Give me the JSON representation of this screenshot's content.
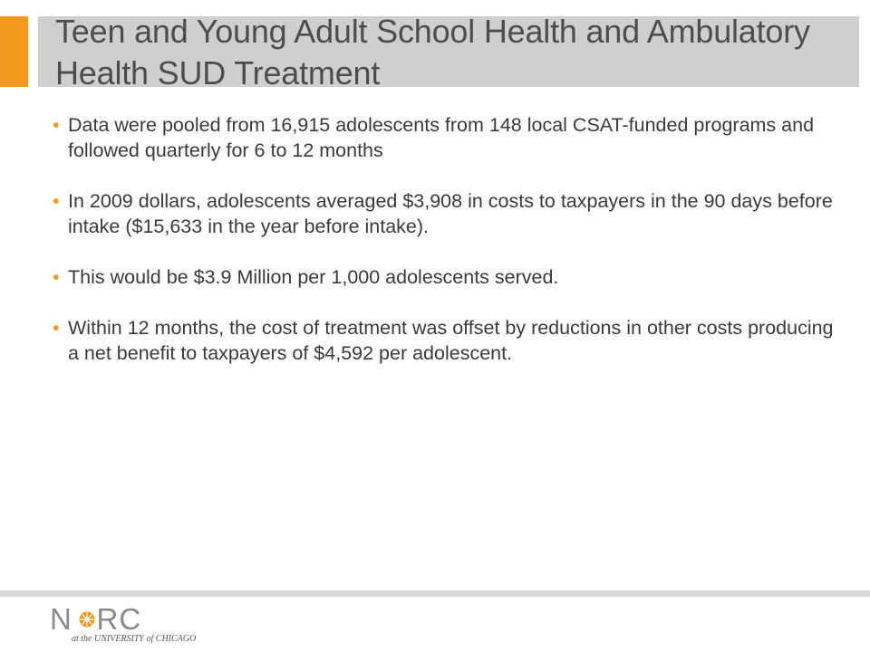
{
  "colors": {
    "accent": "#f39a1e",
    "title_band": "#cfcfcf",
    "title_text": "#4d4d4d",
    "body_text": "#3a3a3a",
    "footer_line": "#d9d9d9"
  },
  "slide": {
    "title": "Teen and Young Adult School Health and Ambulatory Health SUD Treatment",
    "bullets": [
      "Data were pooled from 16,915 adolescents from 148 local CSAT-funded programs and followed quarterly for 6 to 12 months",
      "In 2009 dollars, adolescents averaged $3,908 in costs to taxpayers in the 90 days before intake ($15,633 in the year before intake).",
      "This would be $3.9 Million per 1,000 adolescents served.",
      "Within 12 months, the cost of treatment was offset by reductions in other costs producing a net benefit to taxpayers of $4,592 per adolescent."
    ],
    "bullet_symbol": "•"
  },
  "logo": {
    "wordmark": "NORC",
    "tagline": "at the UNIVERSITY of CHICAGO",
    "icon": "sunburst-star-icon"
  }
}
